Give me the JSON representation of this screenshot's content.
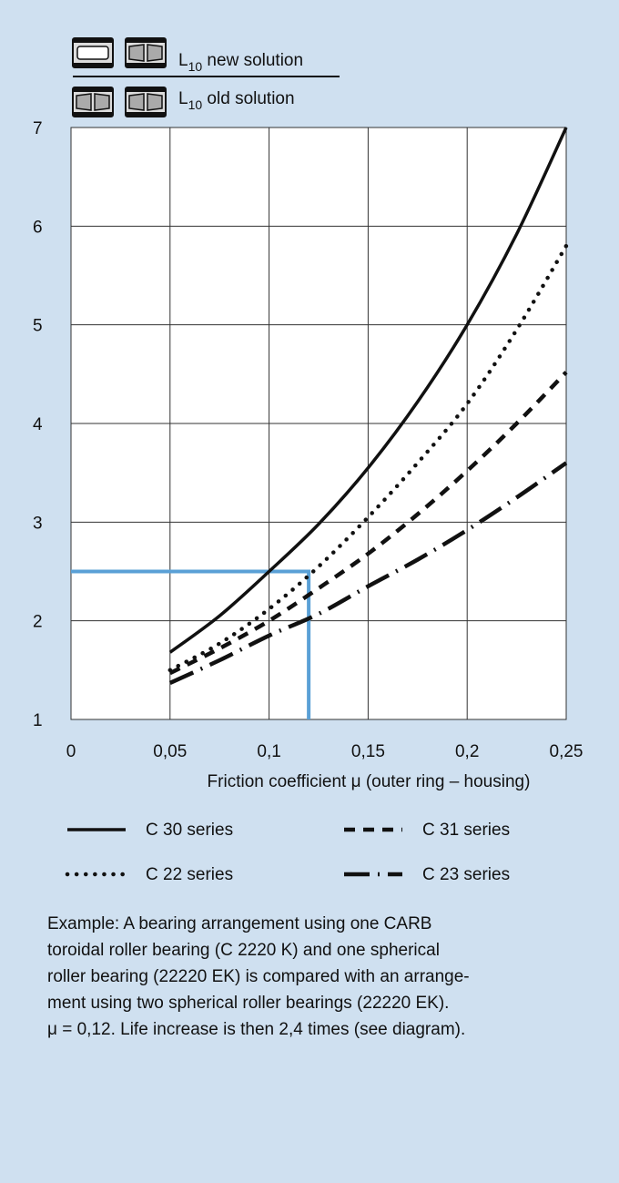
{
  "header": {
    "new_label_main": "L",
    "new_label_sub": "10",
    "new_label_rest": " new solution",
    "old_label_main": "L",
    "old_label_sub": "10",
    "old_label_rest": " old solution",
    "new_icons": [
      "toroidal-bearing-icon",
      "spherical-bearing-icon"
    ],
    "old_icons": [
      "spherical-bearing-icon",
      "spherical-bearing-icon"
    ]
  },
  "chart_data": {
    "type": "line",
    "xlabel": "Friction coefficient μ (outer ring – housing)",
    "ylabel": "",
    "xlim": [
      0,
      0.25
    ],
    "ylim": [
      1,
      7
    ],
    "grid": true,
    "x_tick_labels": [
      "0",
      "0,05",
      "0,1",
      "0,15",
      "0,2",
      "0,25"
    ],
    "x_tick_values": [
      0,
      0.05,
      0.1,
      0.15,
      0.2,
      0.25
    ],
    "y_tick_labels": [
      "1",
      "2",
      "3",
      "4",
      "5",
      "6",
      "7"
    ],
    "y_tick_values": [
      1,
      2,
      3,
      4,
      5,
      6,
      7
    ],
    "series": [
      {
        "name": "C 30 series",
        "style": "solid",
        "color": "#111111",
        "x": [
          0.05,
          0.075,
          0.1,
          0.125,
          0.15,
          0.175,
          0.2,
          0.225,
          0.25
        ],
        "y": [
          1.68,
          2.05,
          2.5,
          2.98,
          3.55,
          4.22,
          5.0,
          5.92,
          7.0
        ]
      },
      {
        "name": "C 22 series",
        "style": "dotted",
        "color": "#111111",
        "x": [
          0.05,
          0.075,
          0.1,
          0.125,
          0.15,
          0.175,
          0.2,
          0.225,
          0.25
        ],
        "y": [
          1.5,
          1.77,
          2.12,
          2.55,
          3.05,
          3.6,
          4.2,
          4.95,
          5.8
        ]
      },
      {
        "name": "C 31 series",
        "style": "dashed",
        "color": "#111111",
        "x": [
          0.05,
          0.075,
          0.1,
          0.125,
          0.15,
          0.175,
          0.2,
          0.225,
          0.25
        ],
        "y": [
          1.47,
          1.72,
          2.0,
          2.33,
          2.68,
          3.08,
          3.52,
          4.0,
          4.52
        ]
      },
      {
        "name": "C 23 series",
        "style": "dashdot",
        "color": "#111111",
        "x": [
          0.05,
          0.075,
          0.1,
          0.125,
          0.15,
          0.175,
          0.2,
          0.225,
          0.25
        ],
        "y": [
          1.37,
          1.6,
          1.85,
          2.07,
          2.35,
          2.62,
          2.92,
          3.25,
          3.6
        ]
      }
    ],
    "annotation": {
      "x": 0.12,
      "y": 2.5,
      "color": "#5aa0d6"
    }
  },
  "legend": {
    "items": [
      {
        "label": "C 30 series",
        "style": "solid"
      },
      {
        "label": "C 31 series",
        "style": "dashed"
      },
      {
        "label": "C 22 series",
        "style": "dotted"
      },
      {
        "label": "C 23 series",
        "style": "dashdot"
      }
    ]
  },
  "example": {
    "lines": [
      "Example: A bearing arrangement using one CARB",
      "toroidal roller bearing (C 2220 K) and one spherical",
      "roller bearing (22220 EK) is compared with an arrange-",
      "ment using two spherical roller bearings (22220 EK).",
      "μ = 0,12. Life increase is then 2,4 times (see diagram)."
    ]
  },
  "colors": {
    "background": "#cfe0f0",
    "plot_bg": "#ffffff",
    "accent": "#5aa0d6",
    "line": "#111111"
  }
}
